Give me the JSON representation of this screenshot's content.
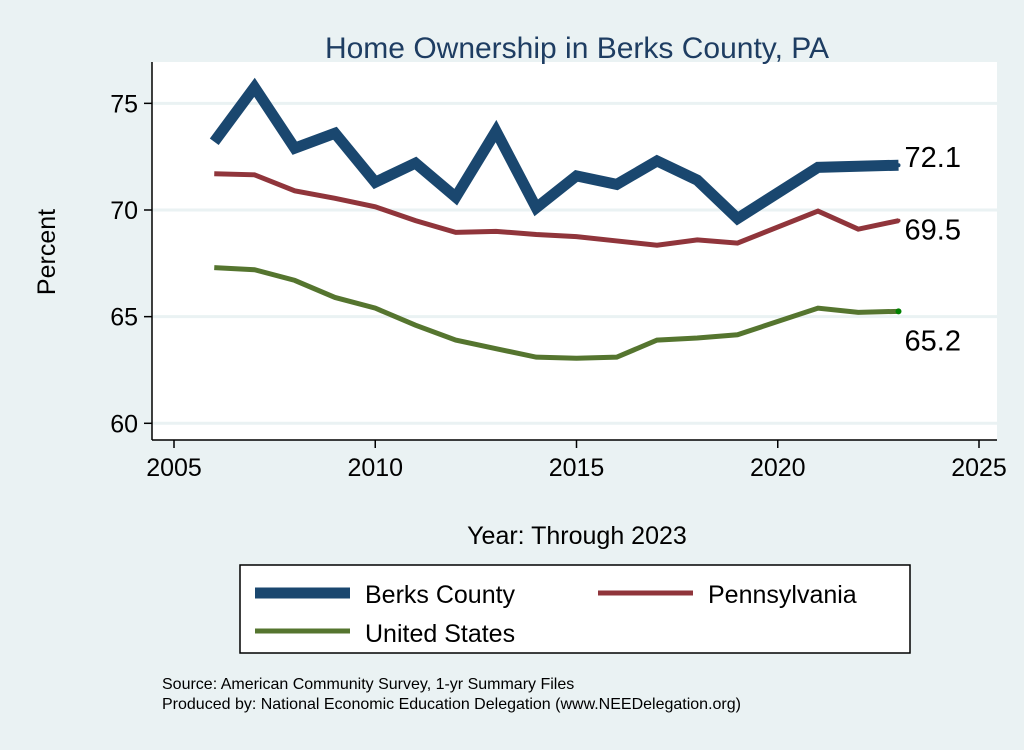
{
  "chart_data": {
    "type": "line",
    "title": "Home Ownership in Berks County, PA",
    "xlabel": "Year: Through 2023",
    "ylabel": "Percent",
    "xlim": [
      2005,
      2025
    ],
    "ylim": [
      60,
      76.5
    ],
    "xticks": [
      2005,
      2010,
      2015,
      2020,
      2025
    ],
    "yticks": [
      60,
      65,
      70,
      75
    ],
    "grid": true,
    "legend_position": "bottom",
    "series": [
      {
        "name": "Berks County",
        "color": "#1a476f",
        "x": [
          2006,
          2007,
          2008,
          2009,
          2010,
          2011,
          2012,
          2013,
          2014,
          2015,
          2016,
          2017,
          2018,
          2019,
          2021,
          2022,
          2023
        ],
        "values": [
          73.2,
          75.75,
          72.9,
          73.6,
          71.3,
          72.2,
          70.6,
          73.7,
          70.1,
          71.6,
          71.2,
          72.3,
          71.4,
          69.6,
          72.0,
          72.05,
          72.1
        ],
        "end_label": "72.1"
      },
      {
        "name": "Pennsylvania",
        "color": "#90353b",
        "x": [
          2006,
          2007,
          2008,
          2009,
          2010,
          2011,
          2012,
          2013,
          2014,
          2015,
          2016,
          2017,
          2018,
          2019,
          2021,
          2022,
          2023
        ],
        "values": [
          71.7,
          71.65,
          70.9,
          70.55,
          70.15,
          69.5,
          68.95,
          69.0,
          68.85,
          68.75,
          68.55,
          68.35,
          68.6,
          68.45,
          69.95,
          69.1,
          69.5
        ],
        "end_label": "69.5"
      },
      {
        "name": "United States",
        "color": "#55752f",
        "x": [
          2006,
          2007,
          2008,
          2009,
          2010,
          2011,
          2012,
          2013,
          2014,
          2015,
          2016,
          2017,
          2018,
          2019,
          2021,
          2022,
          2023
        ],
        "values": [
          67.3,
          67.2,
          66.7,
          65.9,
          65.4,
          64.6,
          63.9,
          63.5,
          63.1,
          63.05,
          63.1,
          63.9,
          64.0,
          64.15,
          65.4,
          65.2,
          65.25
        ],
        "end_label": "65.2"
      }
    ]
  },
  "notes": {
    "source": "Source: American Community Survey, 1-yr Summary Files",
    "producer": "Produced by: National Economic Education Delegation (www.NEEDelegation.org)"
  }
}
